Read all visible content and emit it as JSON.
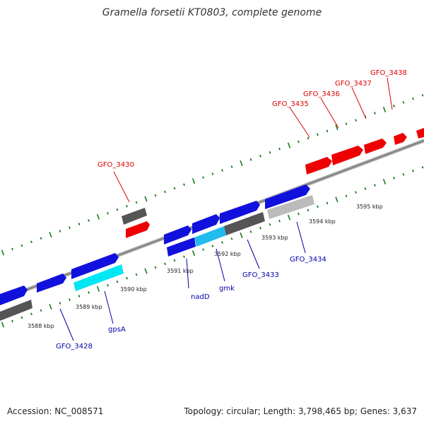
{
  "title": "Gramella forsetii KT0803, complete genome",
  "accession": "Accession: NC_008571",
  "summary": "Topology: circular; Length: 3,798,465 bp; Genes: 3,637",
  "colors": {
    "backbone": "#888888",
    "tick_green": "#1b7a1b",
    "top_label": "#dd0000",
    "bottom_label": "#0000aa",
    "gene_red": "#ee0000",
    "gene_blue": "#1111dd",
    "gene_cyan": "#00e0ee",
    "gene_dark_gray": "#555555",
    "gene_light_gray": "#bbbbbb"
  },
  "kbp_labels": [
    "3588 kbp",
    "3589 kbp",
    "3590 kbp",
    "3591 kbp",
    "3592 kbp",
    "3593 kbp",
    "3594 kbp",
    "3595 kbp"
  ],
  "top_gene_labels": [
    "GFO_3430",
    "GFO_3435",
    "GFO_3436",
    "GFO_3437",
    "GFO_3438"
  ],
  "bottom_gene_labels": [
    "GFO_3428",
    "gpsA",
    "nadD",
    "gmk",
    "GFO_3433",
    "GFO_3434"
  ]
}
